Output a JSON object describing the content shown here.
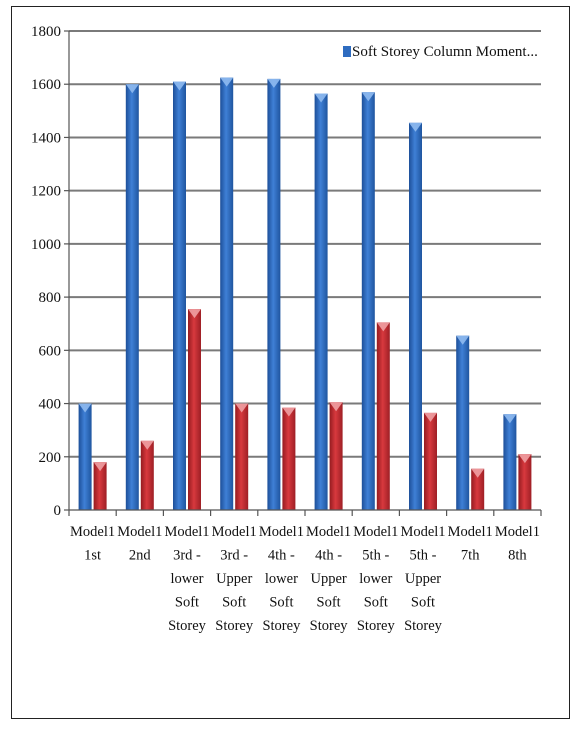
{
  "chart_data": {
    "type": "bar",
    "title": "",
    "xlabel": "",
    "ylabel": "",
    "ylim": [
      0,
      1800
    ],
    "yticks": [
      0,
      200,
      400,
      600,
      800,
      1000,
      1200,
      1400,
      1600,
      1800
    ],
    "grid": "horizontal",
    "legend_position": "top-right",
    "categories": [
      [
        "Model1",
        "1st"
      ],
      [
        "Model1",
        "2nd"
      ],
      [
        "Model1",
        "3rd -",
        "lower",
        "Soft",
        "Storey"
      ],
      [
        "Model1",
        "3rd -",
        "Upper",
        "Soft",
        "Storey"
      ],
      [
        "Model1",
        "4th -",
        "lower",
        "Soft",
        "Storey"
      ],
      [
        "Model1",
        "4th -",
        "Upper",
        "Soft",
        "Storey"
      ],
      [
        "Model1",
        "5th -",
        "lower",
        "Soft",
        "Storey"
      ],
      [
        "Model1",
        "5th -",
        "Upper",
        "Soft",
        "Storey"
      ],
      [
        "Model1",
        "7th"
      ],
      [
        "Model1",
        "8th"
      ]
    ],
    "series": [
      {
        "name": "Soft Storey Column Moment...",
        "color": "#2e6cc0",
        "values": [
          400,
          1600,
          1610,
          1625,
          1620,
          1565,
          1570,
          1455,
          655,
          360
        ]
      },
      {
        "color": "#c0282e",
        "values": [
          180,
          260,
          755,
          400,
          385,
          405,
          705,
          365,
          155,
          210
        ]
      }
    ]
  }
}
